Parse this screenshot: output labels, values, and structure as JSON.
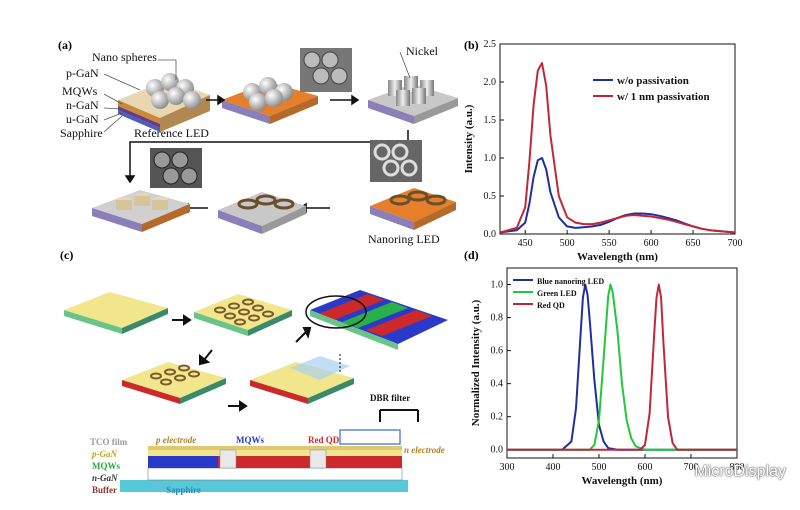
{
  "panels": {
    "a": {
      "letter": "(a)",
      "layers": [
        "p-GaN",
        "MQWs",
        "n-GaN",
        "u-GaN",
        "Sapphire"
      ],
      "nano_spheres": "Nano spheres",
      "reference_led": "Reference LED",
      "nickel": "Nickel",
      "nanoring_led": "Nanoring LED"
    },
    "c": {
      "letter": "(c)",
      "dbr_filter": "DBR filter",
      "stack_layers": [
        "TCO film",
        "p-GaN",
        "MQWs",
        "n-GaN",
        "Buffer",
        "Sapphire"
      ],
      "p_electrode": "p electrode",
      "mqws_top": "MQWs",
      "red_qd": "Red QD",
      "n_electrode": "n electrode"
    }
  },
  "chart_data": [
    {
      "panel": "(b)",
      "type": "line",
      "xlabel": "Wavelength (nm)",
      "ylabel": "Intensity (a.u.)",
      "xlim": [
        420,
        700
      ],
      "ylim": [
        0,
        2.5
      ],
      "xticks": [
        450,
        500,
        550,
        600,
        650,
        700
      ],
      "yticks": [
        0.0,
        0.5,
        1.0,
        1.5,
        2.0,
        2.5
      ],
      "ytick_labels": [
        "0.0",
        "0.5",
        "1.0",
        "1.5",
        "2.0",
        "2.5"
      ],
      "legend_position": "top-right",
      "series": [
        {
          "name": "w/o passivation",
          "color": "#1f2f9f",
          "x": [
            420,
            440,
            450,
            455,
            460,
            465,
            470,
            475,
            480,
            490,
            500,
            510,
            520,
            530,
            540,
            550,
            560,
            570,
            580,
            590,
            600,
            610,
            620,
            630,
            640,
            650,
            660,
            670,
            680,
            700
          ],
          "y": [
            0.02,
            0.05,
            0.15,
            0.4,
            0.75,
            0.97,
            1.0,
            0.85,
            0.55,
            0.22,
            0.1,
            0.08,
            0.09,
            0.1,
            0.12,
            0.16,
            0.21,
            0.25,
            0.27,
            0.27,
            0.26,
            0.24,
            0.21,
            0.18,
            0.14,
            0.1,
            0.07,
            0.05,
            0.04,
            0.02
          ]
        },
        {
          "name": "w/ 1 nm passivation",
          "color": "#c0283a",
          "x": [
            420,
            440,
            450,
            455,
            460,
            465,
            470,
            475,
            480,
            490,
            500,
            510,
            520,
            530,
            540,
            550,
            560,
            570,
            580,
            590,
            600,
            610,
            620,
            630,
            640,
            650,
            660,
            670,
            680,
            700
          ],
          "y": [
            0.02,
            0.08,
            0.35,
            0.95,
            1.7,
            2.15,
            2.25,
            1.95,
            1.3,
            0.5,
            0.22,
            0.15,
            0.13,
            0.13,
            0.15,
            0.18,
            0.21,
            0.24,
            0.25,
            0.24,
            0.23,
            0.21,
            0.19,
            0.16,
            0.13,
            0.1,
            0.07,
            0.05,
            0.04,
            0.02
          ]
        }
      ]
    },
    {
      "panel": "(d)",
      "type": "line",
      "xlabel": "Wavelength (nm)",
      "ylabel": "Normalized Intensity (a.u.)",
      "xlim": [
        300,
        800
      ],
      "ylim": [
        -0.05,
        1.1
      ],
      "xticks": [
        300,
        400,
        500,
        600,
        700,
        800
      ],
      "yticks": [
        0.0,
        0.2,
        0.4,
        0.6,
        0.8,
        1.0
      ],
      "ytick_labels": [
        "0.0",
        "0.2",
        "0.4",
        "0.6",
        "0.8",
        "1.0"
      ],
      "legend_position": "top-left",
      "series": [
        {
          "name": "Blue nanoring LED",
          "color": "#1f2f9f",
          "x": [
            300,
            420,
            440,
            450,
            460,
            465,
            470,
            475,
            480,
            490,
            500,
            510,
            520,
            540,
            800
          ],
          "y": [
            0,
            0,
            0.05,
            0.25,
            0.7,
            0.92,
            1.0,
            0.94,
            0.78,
            0.42,
            0.15,
            0.05,
            0.01,
            0,
            0
          ]
        },
        {
          "name": "Green LED",
          "color": "#22c83a",
          "x": [
            300,
            480,
            490,
            500,
            510,
            520,
            525,
            530,
            540,
            550,
            560,
            570,
            580,
            600,
            800
          ],
          "y": [
            0,
            0,
            0.03,
            0.18,
            0.55,
            0.93,
            1.0,
            0.95,
            0.72,
            0.4,
            0.18,
            0.07,
            0.02,
            0,
            0
          ]
        },
        {
          "name": "Red QD",
          "color": "#c0283a",
          "x": [
            300,
            590,
            600,
            610,
            620,
            625,
            630,
            635,
            640,
            650,
            660,
            670,
            800
          ],
          "y": [
            0,
            0,
            0.03,
            0.22,
            0.7,
            0.92,
            1.0,
            0.92,
            0.65,
            0.2,
            0.04,
            0,
            0
          ]
        }
      ]
    }
  ],
  "watermark": "MicroDisplay"
}
